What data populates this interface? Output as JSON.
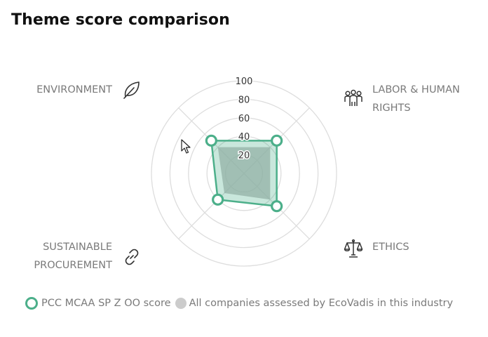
{
  "title": "Theme score comparison",
  "themes": {
    "environment": "ENVIRONMENT",
    "labor_line1": "LABOR & HUMAN",
    "labor_line2": "RIGHTS",
    "ethics": "ETHICS",
    "procurement_line1": "SUSTAINABLE",
    "procurement_line2": "PROCUREMENT"
  },
  "icons": {
    "environment": "leaf-icon",
    "labor": "people-group-icon",
    "ethics": "scales-icon",
    "procurement": "chain-link-icon"
  },
  "legend": {
    "company": "PCC MCAA SP Z OO score",
    "industry": "All companies assessed by EcoVadis in this industry"
  },
  "colors": {
    "company_stroke": "#4caf8a",
    "company_fill": "#4caf8a",
    "industry_fill": "#b3b3b3",
    "grid": "#dddddd"
  },
  "chart_data": {
    "type": "radar",
    "axes": [
      "ENVIRONMENT",
      "LABOR & HUMAN RIGHTS",
      "ETHICS",
      "SUSTAINABLE PROCUREMENT"
    ],
    "rlim": [
      0,
      100
    ],
    "ticks": [
      20,
      40,
      60,
      80,
      100
    ],
    "tick_labels": [
      "20",
      "40",
      "60",
      "80",
      "100"
    ],
    "series": [
      {
        "name": "PCC MCAA SP Z OO score",
        "values": [
          50,
          50,
          50,
          40
        ]
      },
      {
        "name": "All companies assessed by EcoVadis in this industry",
        "values": [
          40,
          40,
          40,
          30
        ]
      }
    ],
    "legend_position": "bottom"
  }
}
